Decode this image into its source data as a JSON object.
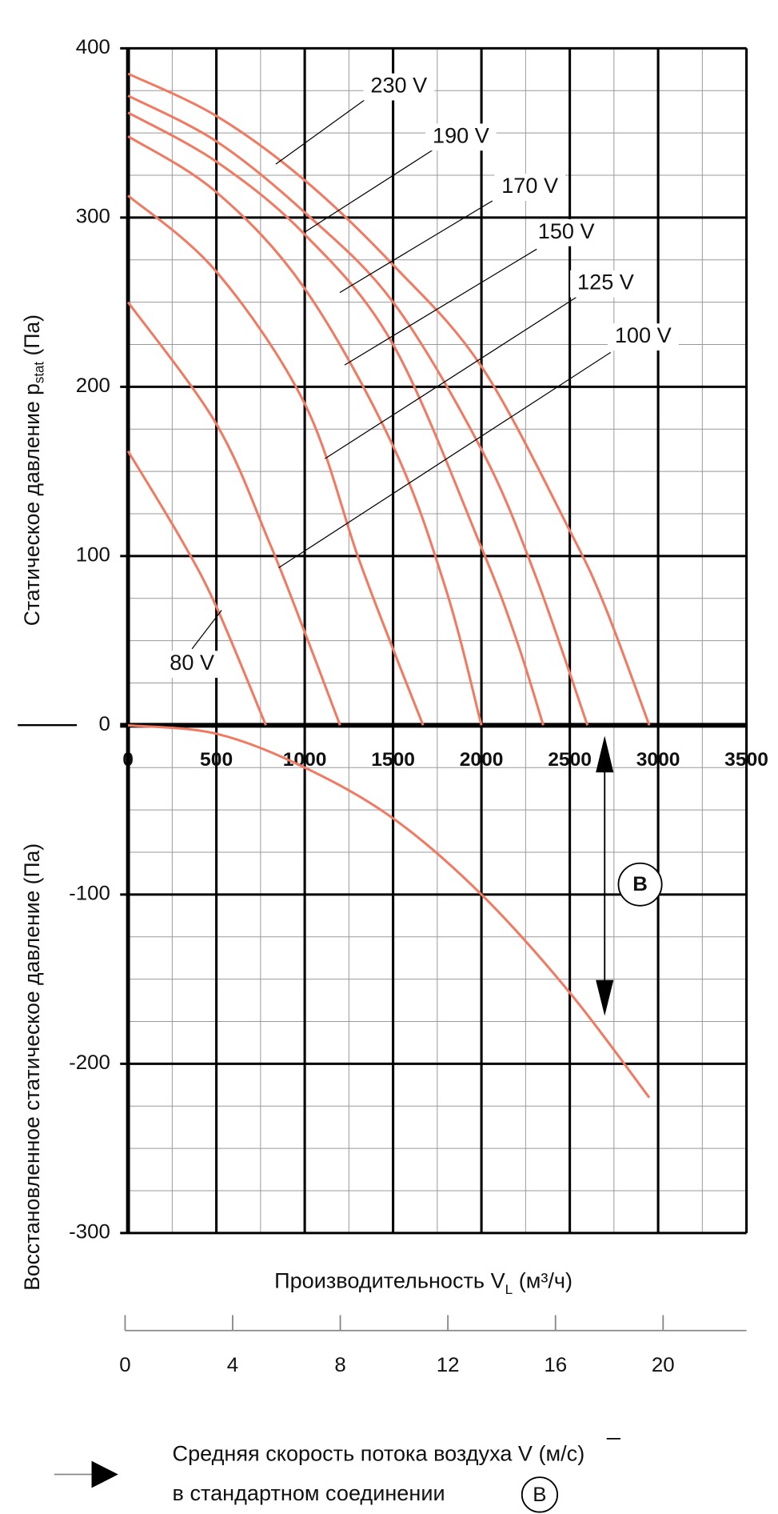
{
  "chart_data": {
    "type": "line",
    "xlim": [
      0,
      3500
    ],
    "xticks": [
      0,
      500,
      1000,
      1500,
      2000,
      2500,
      3000,
      3500
    ],
    "ylim": [
      -300,
      400
    ],
    "yticks": [
      -300,
      -200,
      -100,
      0,
      100,
      200,
      300,
      400
    ],
    "x_minor_step": 250,
    "y_minor_step": 25,
    "grid": true,
    "ylabel_upper": {
      "main": "Статическое давление p",
      "sub": "stat",
      "unit": " (Па)"
    },
    "ylabel_lower": "Восстановленное статическое давление (Па)",
    "xlabel": {
      "main": "Производительность V",
      "sub": "L",
      "unit": " (м³/ч)"
    },
    "series": [
      {
        "name": "230 V",
        "color": "#f07a62",
        "x": [
          0,
          500,
          1000,
          1500,
          2000,
          2500,
          2700,
          2950
        ],
        "values": [
          385,
          360,
          322,
          272,
          212,
          115,
          70,
          0
        ]
      },
      {
        "name": "190 V",
        "color": "#f07a62",
        "x": [
          0,
          500,
          1000,
          1500,
          2000,
          2300,
          2600
        ],
        "values": [
          372,
          345,
          303,
          250,
          163,
          90,
          0
        ]
      },
      {
        "name": "170 V",
        "color": "#f07a62",
        "x": [
          0,
          500,
          1000,
          1500,
          2000,
          2200,
          2350
        ],
        "values": [
          362,
          333,
          290,
          225,
          105,
          50,
          0
        ]
      },
      {
        "name": "150 V",
        "color": "#f07a62",
        "x": [
          0,
          500,
          1000,
          1500,
          1800,
          2000
        ],
        "values": [
          348,
          315,
          258,
          165,
          80,
          0
        ]
      },
      {
        "name": "125 V",
        "color": "#f07a62",
        "x": [
          0,
          500,
          1000,
          1300,
          1500,
          1670
        ],
        "values": [
          313,
          268,
          190,
          100,
          45,
          0
        ]
      },
      {
        "name": "100 V",
        "color": "#f07a62",
        "x": [
          0,
          500,
          800,
          1000,
          1200
        ],
        "values": [
          250,
          178,
          108,
          55,
          0
        ]
      },
      {
        "name": "80 V",
        "color": "#f07a62",
        "x": [
          0,
          300,
          500,
          780
        ],
        "values": [
          162,
          110,
          70,
          0
        ]
      },
      {
        "color": "#f07a62",
        "x": [
          0,
          500,
          1000,
          1500,
          2000,
          2500,
          2950
        ],
        "values": [
          0,
          -5,
          -25,
          -55,
          -100,
          -158,
          -220
        ]
      }
    ],
    "annotation": "B",
    "velocity_axis": {
      "lim": [
        0,
        23.1
      ],
      "ticks": [
        0,
        4,
        8,
        12,
        16,
        20
      ]
    },
    "legend": {
      "line1": "Средняя скорость потока воздуха V (м/с)",
      "line2": "в стандартном соединении",
      "symbol": "B"
    }
  }
}
